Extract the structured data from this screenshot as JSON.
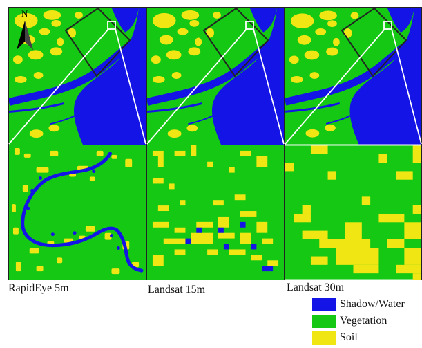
{
  "colors": {
    "water": "#1414e6",
    "vegetation": "#14c814",
    "soil": "#f0e614",
    "frame": "#222222",
    "connector": "#ffffff"
  },
  "north_label": "N",
  "captions": {
    "rapideye": "RapidEye 5m",
    "landsat15": "Landsat 15m",
    "landsat30": "Landsat 30m"
  },
  "legend": [
    {
      "label": "Shadow/Water",
      "color": "#1414e6"
    },
    {
      "label": "Vegetation",
      "color": "#14c814"
    },
    {
      "label": "Soil",
      "color": "#f0e614"
    }
  ]
}
